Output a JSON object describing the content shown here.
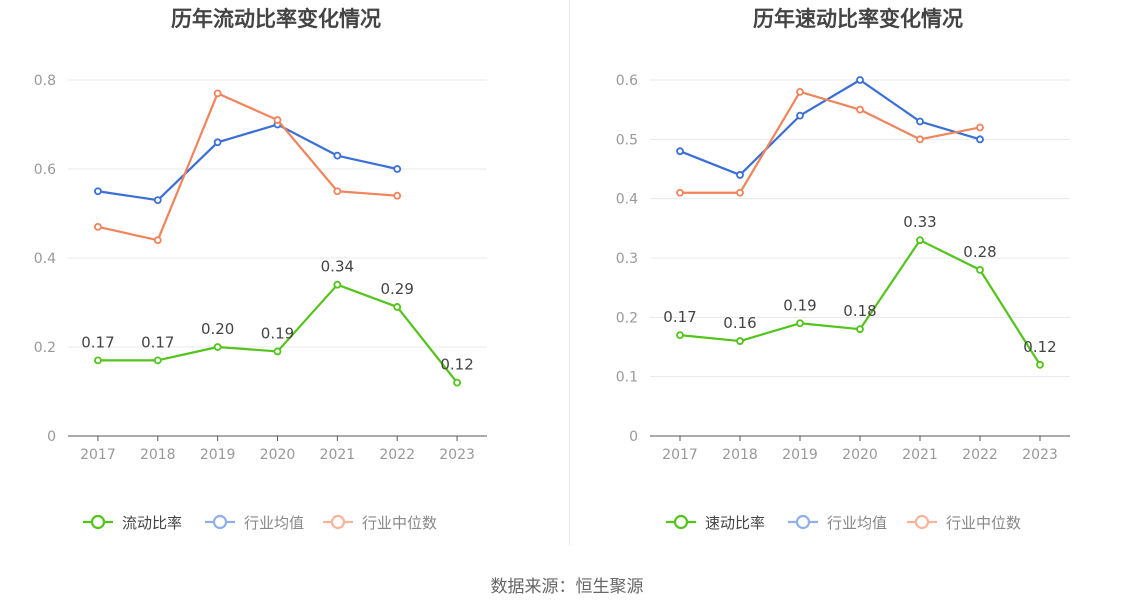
{
  "colors": {
    "main_line": "#52c41a",
    "avg_line": "#3a6fd8",
    "median_line": "#f0845c",
    "avg_legend": "#8fb0ea",
    "median_legend": "#f7b49c",
    "grid": "#e6e8ee",
    "axis": "#555555",
    "tick_text": "#999999",
    "label_text": "#444444",
    "title_text": "#444444"
  },
  "source_label": "数据来源：恒生聚源",
  "chart_data": [
    {
      "type": "line",
      "title": "历年流动比率变化情况",
      "categories": [
        "2017",
        "2018",
        "2019",
        "2020",
        "2021",
        "2022",
        "2023"
      ],
      "ylim": [
        0,
        0.8
      ],
      "yticks": [
        0,
        0.2,
        0.4,
        0.6,
        0.8
      ],
      "ytick_labels": [
        "0",
        "0.2",
        "0.4",
        "0.6",
        "0.8"
      ],
      "grid": true,
      "legend_position": "bottom",
      "series": [
        {
          "name": "流动比率",
          "role": "main",
          "values": [
            0.17,
            0.17,
            0.2,
            0.19,
            0.34,
            0.29,
            0.12
          ],
          "labels": [
            "0.17",
            "0.17",
            "0.20",
            "0.19",
            "0.34",
            "0.29",
            "0.12"
          ]
        },
        {
          "name": "行业均值",
          "role": "avg",
          "values": [
            0.55,
            0.53,
            0.66,
            0.7,
            0.63,
            0.6,
            null
          ]
        },
        {
          "name": "行业中位数",
          "role": "median",
          "values": [
            0.47,
            0.44,
            0.77,
            0.71,
            0.55,
            0.54,
            null
          ]
        }
      ]
    },
    {
      "type": "line",
      "title": "历年速动比率变化情况",
      "categories": [
        "2017",
        "2018",
        "2019",
        "2020",
        "2021",
        "2022",
        "2023"
      ],
      "ylim": [
        0,
        0.6
      ],
      "yticks": [
        0,
        0.1,
        0.2,
        0.3,
        0.4,
        0.5,
        0.6
      ],
      "ytick_labels": [
        "0",
        "0.1",
        "0.2",
        "0.3",
        "0.4",
        "0.5",
        "0.6"
      ],
      "grid": true,
      "legend_position": "bottom",
      "series": [
        {
          "name": "速动比率",
          "role": "main",
          "values": [
            0.17,
            0.16,
            0.19,
            0.18,
            0.33,
            0.28,
            0.12
          ],
          "labels": [
            "0.17",
            "0.16",
            "0.19",
            "0.18",
            "0.33",
            "0.28",
            "0.12"
          ]
        },
        {
          "name": "行业均值",
          "role": "avg",
          "values": [
            0.48,
            0.44,
            0.54,
            0.6,
            0.53,
            0.5,
            null
          ]
        },
        {
          "name": "行业中位数",
          "role": "median",
          "values": [
            0.41,
            0.41,
            0.58,
            0.55,
            0.5,
            0.52,
            null
          ]
        }
      ]
    }
  ]
}
